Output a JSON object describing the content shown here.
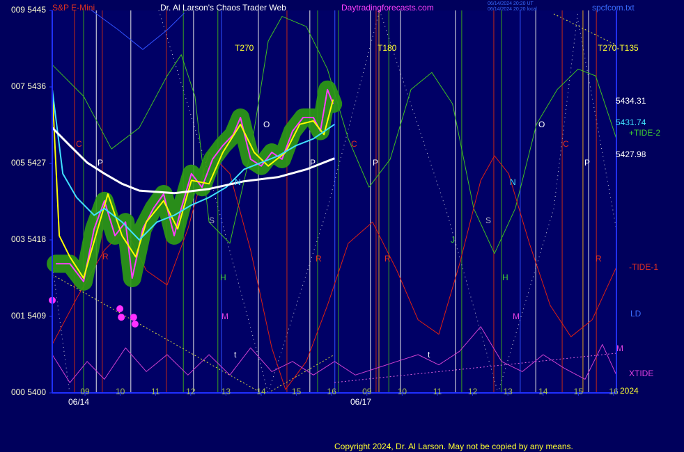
{
  "chart_data": {
    "type": "line",
    "title": "Dr. Al Larson's Chaos Trader Web",
    "subtitle": "S&P E-Mini",
    "site": "Daytradingforecasts.com",
    "file": "spcfcom.txt",
    "timestamps": [
      "06/14/2024 20:20 UT",
      "06/14/2024 20:20 local"
    ],
    "copyright": "Copyright 2024, Dr. Al Larson. May not be copied by any means.",
    "dates": [
      "06/14",
      "06/17",
      "2024"
    ],
    "annotations": [
      "T270",
      "T180",
      "T270-T135",
      "C",
      "P",
      "R",
      "S",
      "N",
      "H",
      "M",
      "O",
      "P",
      "C",
      "P",
      "R",
      "R",
      "J",
      "S",
      "N",
      "H",
      "M",
      "O",
      "C",
      "P",
      "R",
      "t",
      "t",
      "5434.31",
      "5431.74",
      "+TIDE-2",
      "5427.98",
      "-TIDE-1",
      "LD",
      "M",
      "XTIDE"
    ],
    "xlim": [
      -0.93,
      15.08
    ],
    "ylim": [
      5400,
      5445
    ],
    "xticks": [
      {
        "value": 0,
        "label": "09"
      },
      {
        "value": 1,
        "label": "10"
      },
      {
        "value": 2,
        "label": "11"
      },
      {
        "value": 3,
        "label": "12"
      },
      {
        "value": 4,
        "label": "13"
      },
      {
        "value": 5,
        "label": "14"
      },
      {
        "value": 6,
        "label": "15"
      },
      {
        "value": 7,
        "label": "16"
      },
      {
        "value": 8,
        "label": "09"
      },
      {
        "value": 9,
        "label": "10"
      },
      {
        "value": 10,
        "label": "11"
      },
      {
        "value": 11,
        "label": "12"
      },
      {
        "value": 12,
        "label": "13"
      },
      {
        "value": 13,
        "label": "14"
      },
      {
        "value": 14,
        "label": "15"
      },
      {
        "value": 15,
        "label": "16"
      }
    ],
    "yticks": [
      {
        "value": 5400,
        "label": "000 5400"
      },
      {
        "value": 5409,
        "label": "001 5409"
      },
      {
        "value": 5418,
        "label": "003 5418"
      },
      {
        "value": 5427,
        "label": "005 5427"
      },
      {
        "value": 5436,
        "label": "007 5436"
      },
      {
        "value": 5445,
        "label": "009 5445"
      }
    ],
    "grid": false,
    "time_markers": [
      {
        "color": "#c02818",
        "x": [
          -0.3,
          0.49,
          2.31,
          5.73,
          8.26,
          11.6,
          13.54,
          14.51
        ]
      },
      {
        "color": "#e8e8e8",
        "x": [
          0.32,
          1.3,
          3.08,
          4.92,
          6.38,
          8.1,
          8.95,
          10.51,
          12.79,
          14.29
        ]
      },
      {
        "color": "#3aa020",
        "x": [
          -0.04,
          2.79,
          3.77,
          6.6,
          7.19,
          8.62,
          10.69,
          11.82
        ]
      },
      {
        "color": "#3050ff",
        "x": [
          3.87,
          7.09,
          12.35
        ]
      },
      {
        "color": "#e0a020",
        "x": [
          8.34,
          14.13
        ]
      }
    ],
    "series": [
      {
        "color": "#3050ff",
        "width": 1,
        "x": [
          0.16,
          0.95,
          1.64,
          2.33,
          2.82
        ],
        "values": [
          5445.1,
          5442.7,
          5440.4,
          5442.7,
          5444.7
        ]
      },
      {
        "color": "#40c020",
        "width": 1,
        "x": [
          -0.93,
          -0.04,
          0.75,
          1.54,
          2.33,
          2.73,
          3.12,
          3.52,
          4.11,
          4.7,
          5.2,
          5.59,
          6.28,
          6.88,
          7.47,
          8.06,
          8.66,
          9.25,
          9.84,
          10.43,
          11.03,
          11.62,
          12.21,
          12.81,
          13.4,
          13.99,
          14.49,
          15.08
        ],
        "values": [
          5438.6,
          5434.9,
          5428.7,
          5431.2,
          5437.3,
          5439.8,
          5434.9,
          5420.1,
          5417.6,
          5428.3,
          5441.4,
          5444.3,
          5443.1,
          5438.1,
          5429.9,
          5424.2,
          5427.5,
          5435.7,
          5437.7,
          5434.0,
          5421.7,
          5416.4,
          5421.7,
          5431.6,
          5435.7,
          5438.1,
          5437.3,
          5429.9
        ]
      },
      {
        "color": "#e02010",
        "width": 1,
        "x": [
          -0.93,
          -0.24,
          0.55,
          1.15,
          1.74,
          2.33,
          2.92,
          3.52,
          4.11,
          4.7,
          5.3,
          5.69,
          6.28,
          6.88,
          7.47,
          8.16,
          8.85,
          9.45,
          10.04,
          10.63,
          11.23,
          11.62,
          12.02,
          12.61,
          13.2,
          13.79,
          14.39,
          15.08
        ],
        "values": [
          5405.7,
          5411.1,
          5416.8,
          5419.3,
          5414.4,
          5412.7,
          5419.3,
          5428.3,
          5425.8,
          5416.8,
          5405.3,
          5400.4,
          5403.7,
          5410.3,
          5417.6,
          5420.1,
          5414.4,
          5408.6,
          5406.9,
          5415.2,
          5425.0,
          5427.9,
          5425.8,
          5417.6,
          5410.3,
          5406.6,
          5408.6,
          5414.8
        ]
      },
      {
        "color": "#d040d0",
        "width": 1,
        "x": [
          -0.93,
          -0.43,
          0.06,
          0.55,
          1.15,
          1.74,
          2.33,
          2.92,
          3.52,
          4.11,
          4.7,
          5.3,
          5.89,
          6.48,
          7.08,
          7.67,
          8.26,
          8.85,
          9.45,
          10.04,
          10.63,
          11.23,
          11.82,
          12.41,
          13.0,
          13.6,
          14.19,
          14.68,
          15.08
        ],
        "values": [
          5404.5,
          5401.2,
          5403.7,
          5401.6,
          5405.3,
          5402.5,
          5404.5,
          5402.1,
          5404.5,
          5402.1,
          5405.3,
          5402.5,
          5403.7,
          5402.1,
          5403.7,
          5402.1,
          5402.9,
          5403.7,
          5404.5,
          5403.3,
          5404.9,
          5407.8,
          5403.7,
          5402.5,
          5404.5,
          5402.9,
          5401.6,
          5405.7,
          5402.1
        ]
      },
      {
        "color": "#ff40ff",
        "width": 2,
        "glow": "#2e9c12",
        "x": [
          -0.83,
          -0.43,
          -0.04,
          0.26,
          0.55,
          0.85,
          1.15,
          1.34,
          1.64,
          1.94,
          2.23,
          2.53,
          2.73,
          3.02,
          3.32,
          3.62,
          3.91,
          4.21,
          4.41,
          4.7,
          5.0,
          5.3,
          5.59,
          5.89,
          6.19,
          6.48,
          6.68,
          6.88,
          7.04
        ],
        "values": [
          5415.2,
          5415.2,
          5413.1,
          5419.3,
          5422.6,
          5418.5,
          5420.1,
          5413.5,
          5419.3,
          5421.7,
          5423.4,
          5418.5,
          5421.7,
          5425.8,
          5424.2,
          5427.5,
          5429.1,
          5430.4,
          5432.4,
          5427.5,
          5426.7,
          5428.3,
          5427.5,
          5430.8,
          5432.4,
          5432.4,
          5430.8,
          5435.7,
          5434.0
        ]
      },
      {
        "color": "#ffff00",
        "width": 2,
        "x": [
          -0.93,
          -0.73,
          -0.43,
          -0.04,
          0.36,
          0.65,
          1.05,
          1.44,
          1.74,
          2.23,
          2.63,
          3.02,
          3.52,
          3.91,
          4.41,
          4.8,
          5.2,
          5.69,
          6.09,
          6.48,
          6.78,
          7.04
        ],
        "values": [
          5435.7,
          5418.5,
          5416.0,
          5413.5,
          5419.3,
          5423.4,
          5418.5,
          5416.0,
          5420.1,
          5422.6,
          5419.3,
          5425.0,
          5424.6,
          5428.3,
          5431.6,
          5428.3,
          5426.7,
          5428.3,
          5431.6,
          5432.0,
          5430.4,
          5434.5
        ]
      },
      {
        "color": "#40e0ff",
        "width": 2,
        "x": [
          -0.93,
          -0.63,
          -0.24,
          0.26,
          0.55,
          1.05,
          1.54,
          2.04,
          2.53,
          3.02,
          3.52,
          4.01,
          4.51,
          5.0,
          5.49,
          5.99,
          6.48,
          7.08
        ],
        "values": [
          5435.7,
          5425.8,
          5423.0,
          5420.9,
          5421.7,
          5420.1,
          5418.0,
          5420.1,
          5420.9,
          5422.1,
          5423.0,
          5424.2,
          5426.3,
          5427.1,
          5427.9,
          5429.1,
          5429.9,
          5431.6
        ]
      },
      {
        "color": "#ffffff",
        "width": 3,
        "x": [
          -0.93,
          -0.43,
          0.06,
          0.55,
          1.05,
          1.54,
          2.53,
          3.52,
          4.51,
          5.49,
          6.28,
          7.08
        ],
        "values": [
          5431.2,
          5429.1,
          5427.1,
          5425.8,
          5424.6,
          5423.8,
          5423.5,
          5424.0,
          5424.9,
          5425.4,
          5426.3,
          5427.6
        ]
      }
    ],
    "markers": {
      "color": "#ff30ff",
      "x": [
        -0.93,
        0.99,
        1.03,
        1.38,
        1.42
      ],
      "values": [
        5410.9,
        5409.9,
        5408.9,
        5408.9,
        5408.1
      ]
    }
  }
}
